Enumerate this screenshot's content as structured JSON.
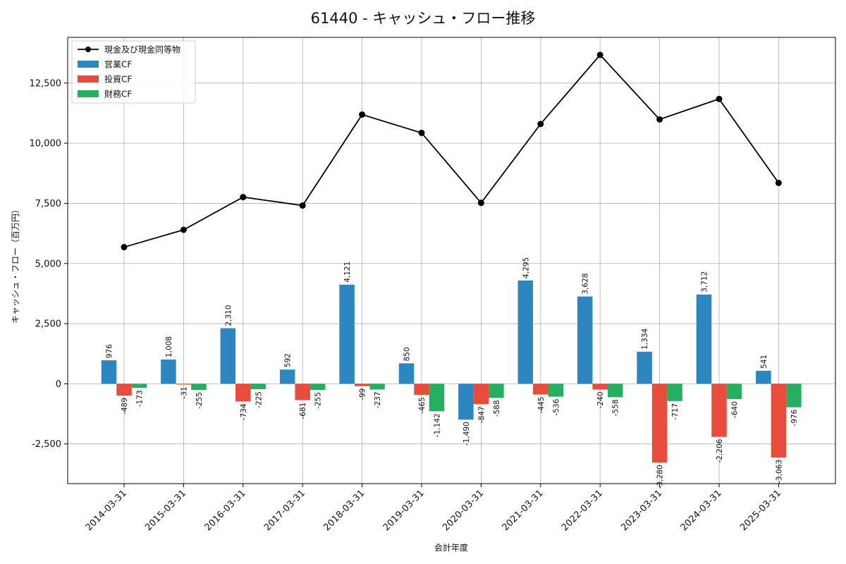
{
  "chart_data": {
    "type": "bar",
    "title": "61440 - キャッシュ・フロー推移",
    "xlabel": "会計年度",
    "ylabel": "キャッシュ・フロー（百万円）",
    "ylim": [
      -4150,
      14400
    ],
    "yticks": [
      -2500,
      0,
      2500,
      5000,
      7500,
      10000,
      12500
    ],
    "grid": true,
    "legend_position": "top-left",
    "categories": [
      "2014-03-31",
      "2015-03-31",
      "2016-03-31",
      "2017-03-31",
      "2018-03-31",
      "2019-03-31",
      "2020-03-31",
      "2021-03-31",
      "2022-03-31",
      "2023-03-31",
      "2024-03-31",
      "2025-03-31"
    ],
    "line": {
      "name": "現金及び現金同等物",
      "type": "line",
      "color": "#000000",
      "values": [
        5680,
        6400,
        7760,
        7410,
        11190,
        10430,
        7520,
        10800,
        13670,
        10990,
        11840,
        8350
      ]
    },
    "series": [
      {
        "name": "営業CF",
        "color": "#2e86c1",
        "values": [
          976,
          1008,
          2310,
          592,
          4121,
          850,
          -1490,
          4295,
          3628,
          1334,
          3712,
          541
        ],
        "labels": [
          "976",
          "1,008",
          "2,310",
          "592",
          "4,121",
          "850",
          "-1,490",
          "4,295",
          "3,628",
          "1,334",
          "3,712",
          "541"
        ]
      },
      {
        "name": "投資CF",
        "color": "#e74c3c",
        "values": [
          -489,
          -31,
          -734,
          -681,
          -99,
          -465,
          -847,
          -445,
          -240,
          -3280,
          -2206,
          -3063
        ],
        "labels": [
          "-489",
          "-31",
          "-734",
          "-681",
          "-99",
          "-465",
          "-847",
          "-445",
          "-240",
          "-3,280",
          "-2,206",
          "-3,063"
        ]
      },
      {
        "name": "財務CF",
        "color": "#27ae60",
        "values": [
          -173,
          -255,
          -225,
          -255,
          -237,
          -1142,
          -588,
          -536,
          -558,
          -717,
          -640,
          -976
        ],
        "labels": [
          "-173",
          "-255",
          "-225",
          "-255",
          "-237",
          "-1,142",
          "-588",
          "-536",
          "-558",
          "-717",
          "-640",
          "-976"
        ]
      }
    ]
  }
}
